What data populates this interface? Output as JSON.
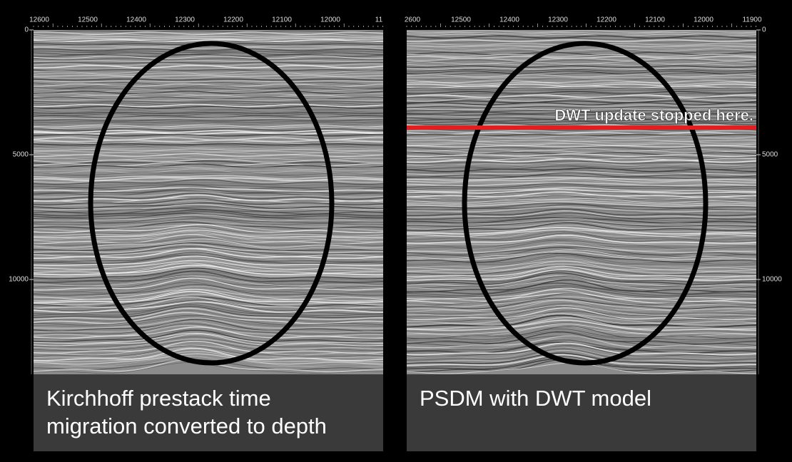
{
  "left_panel": {
    "x_ticks": [
      "12600",
      "12500",
      "12400",
      "12300",
      "12200",
      "12100",
      "12000",
      "11"
    ],
    "y_ticks": [
      0,
      5000,
      10000
    ],
    "caption": "Kirchhoff prestack time migration converted to depth"
  },
  "right_panel": {
    "x_ticks": [
      "2600",
      "12500",
      "12400",
      "12300",
      "12200",
      "12100",
      "12000",
      "11900"
    ],
    "y_ticks": [
      0,
      5000,
      10000
    ],
    "annotation": "DWT update stopped here.",
    "caption": "PSDM with DWT model"
  }
}
